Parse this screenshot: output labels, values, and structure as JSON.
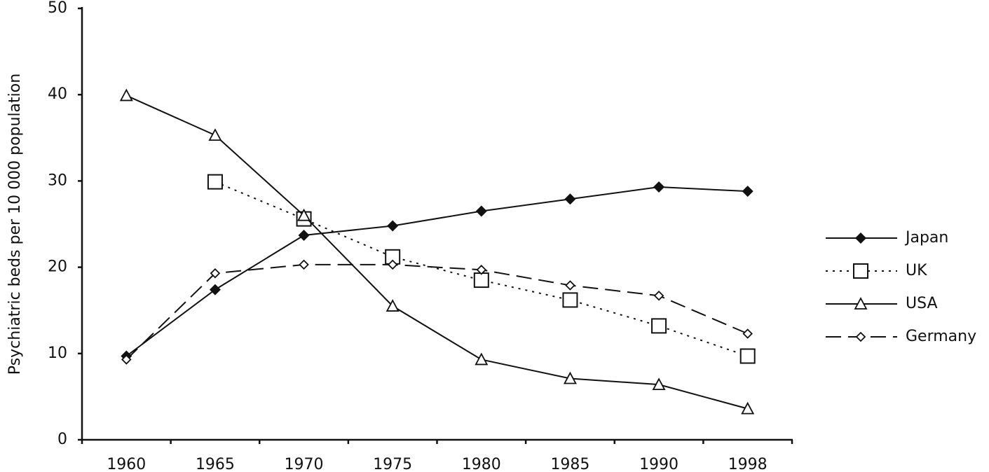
{
  "chart_data": {
    "type": "line",
    "y_label": "Psychiatric beds per 10 000 population",
    "categories": [
      "1960",
      "1965",
      "1970",
      "1975",
      "1980",
      "1985",
      "1990",
      "1998"
    ],
    "ylim": [
      0,
      50
    ],
    "yticks": [
      0,
      10,
      20,
      30,
      40,
      50
    ],
    "legend": "right",
    "series": [
      {
        "name": "Japan",
        "color": "#111111",
        "marker": "filled-diamond",
        "dash": "solid",
        "values": [
          9.7,
          17.4,
          23.7,
          24.8,
          26.5,
          27.9,
          29.3,
          28.8
        ]
      },
      {
        "name": "UK",
        "color": "#111111",
        "marker": "open-square",
        "dash": "dotted",
        "values": [
          null,
          29.9,
          25.6,
          21.2,
          18.5,
          16.2,
          13.2,
          9.7
        ]
      },
      {
        "name": "USA",
        "color": "#111111",
        "marker": "open-triangle",
        "dash": "solid",
        "values": [
          39.9,
          35.3,
          26.0,
          15.5,
          9.3,
          7.1,
          6.4,
          3.6
        ]
      },
      {
        "name": "Germany",
        "color": "#111111",
        "marker": "open-diamond",
        "dash": "dashed",
        "values": [
          9.3,
          19.3,
          20.3,
          20.3,
          19.7,
          17.9,
          16.7,
          12.3
        ]
      }
    ]
  }
}
